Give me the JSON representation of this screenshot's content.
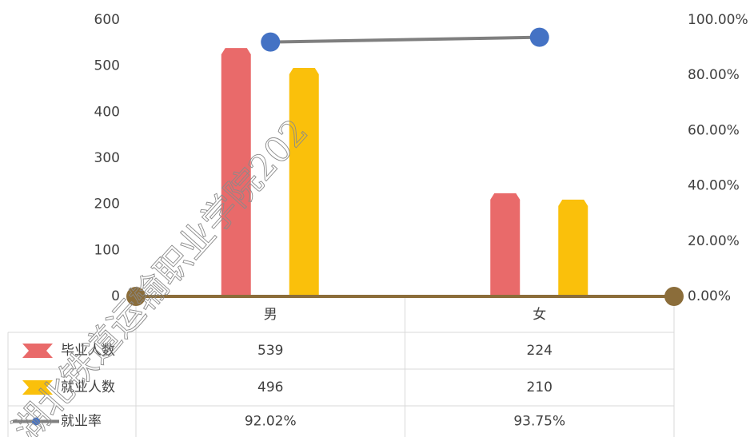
{
  "chart_data": {
    "type": "bar-line",
    "watermark": "湖北铁道运输职业学院202",
    "categories": [
      "男",
      "女"
    ],
    "series": [
      {
        "name": "毕业人数",
        "color": "#E96A6A",
        "values": [
          539,
          224
        ]
      },
      {
        "name": "就业人数",
        "color": "#FAC00B",
        "values": [
          496,
          210
        ]
      },
      {
        "name": "就业率",
        "color": "#7F7F7F",
        "marker_color": "#4472C4",
        "axis": "y2",
        "values": [
          92.02,
          93.75
        ],
        "value_labels": [
          "92.02%",
          "93.75%"
        ]
      }
    ],
    "ylim": [
      0,
      600
    ],
    "yticks": [
      0,
      100,
      200,
      300,
      400,
      500,
      600
    ],
    "y2lim": [
      0,
      100
    ],
    "y2ticks": [
      {
        "value": 0,
        "label": "0.00%"
      },
      {
        "value": 20,
        "label": "20.00%"
      },
      {
        "value": 40,
        "label": "40.00%"
      },
      {
        "value": 60,
        "label": "60.00%"
      },
      {
        "value": 80,
        "label": "80.00%"
      },
      {
        "value": 100,
        "label": "100.00%"
      }
    ],
    "data_table": true
  }
}
